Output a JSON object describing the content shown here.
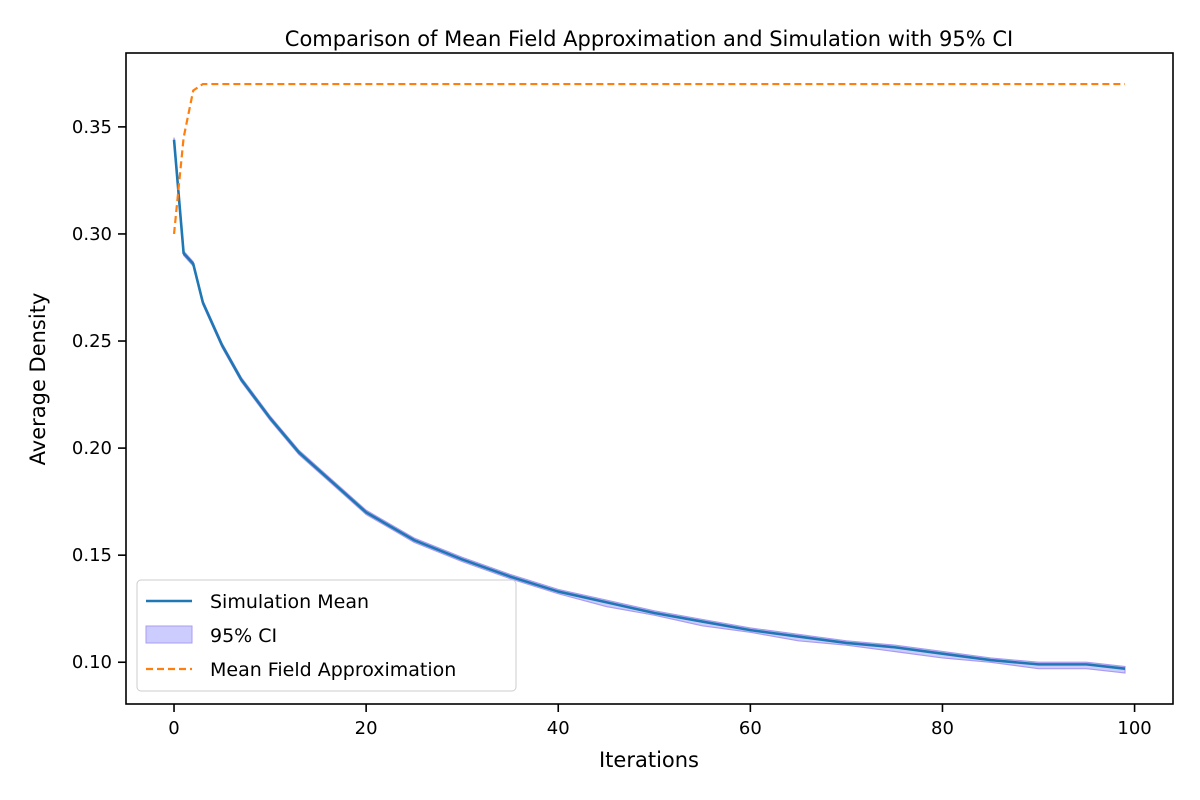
{
  "chart_data": {
    "type": "line",
    "title": "Comparison of Mean Field Approximation and Simulation with 95% CI",
    "xlabel": "Iterations",
    "ylabel": "Average Density",
    "xlim": [
      -5,
      104
    ],
    "ylim": [
      0.0805,
      0.3845
    ],
    "xticks": [
      0,
      20,
      40,
      60,
      80,
      100
    ],
    "xtick_labels": [
      "0",
      "20",
      "40",
      "60",
      "80",
      "100"
    ],
    "yticks": [
      0.1,
      0.15,
      0.2,
      0.25,
      0.3,
      0.35
    ],
    "ytick_labels": [
      "0.10",
      "0.15",
      "0.20",
      "0.25",
      "0.30",
      "0.35"
    ],
    "grid": false,
    "legend_position": "lower-left",
    "colors": {
      "simulation_mean": "#1f77b4",
      "ci_fill": "#ccccff",
      "ci_edge": "#a99cf0",
      "mean_field": "#ff7f0e"
    },
    "series": [
      {
        "name": "Simulation Mean",
        "style": "solid",
        "x": [
          0,
          1,
          2,
          3,
          5,
          7,
          10,
          13,
          16,
          20,
          25,
          30,
          35,
          40,
          45,
          50,
          55,
          60,
          65,
          70,
          75,
          80,
          85,
          90,
          95,
          99
        ],
        "values": [
          0.344,
          0.291,
          0.286,
          0.268,
          0.248,
          0.232,
          0.214,
          0.198,
          0.186,
          0.17,
          0.157,
          0.148,
          0.14,
          0.133,
          0.128,
          0.123,
          0.119,
          0.115,
          0.112,
          0.109,
          0.107,
          0.104,
          0.101,
          0.099,
          0.099,
          0.097
        ]
      },
      {
        "name": "95% CI",
        "style": "band",
        "x": [
          0,
          1,
          2,
          3,
          5,
          7,
          10,
          13,
          16,
          20,
          25,
          30,
          35,
          40,
          45,
          50,
          55,
          60,
          65,
          70,
          75,
          80,
          85,
          90,
          95,
          99
        ],
        "lower": [
          0.343,
          0.29,
          0.285,
          0.267,
          0.247,
          0.231,
          0.213,
          0.197,
          0.185,
          0.169,
          0.156,
          0.147,
          0.139,
          0.132,
          0.126,
          0.122,
          0.117,
          0.114,
          0.11,
          0.108,
          0.105,
          0.102,
          0.1,
          0.097,
          0.097,
          0.095
        ],
        "upper": [
          0.345,
          0.292,
          0.287,
          0.269,
          0.249,
          0.233,
          0.215,
          0.199,
          0.187,
          0.171,
          0.158,
          0.149,
          0.141,
          0.134,
          0.129,
          0.124,
          0.12,
          0.116,
          0.113,
          0.11,
          0.108,
          0.105,
          0.102,
          0.1,
          0.1,
          0.098
        ]
      },
      {
        "name": "Mean Field Approximation",
        "style": "dashed",
        "x": [
          0,
          1,
          2,
          3,
          4,
          10,
          20,
          40,
          60,
          80,
          99
        ],
        "values": [
          0.3,
          0.345,
          0.367,
          0.37,
          0.37,
          0.37,
          0.37,
          0.37,
          0.37,
          0.37,
          0.37
        ]
      }
    ]
  }
}
